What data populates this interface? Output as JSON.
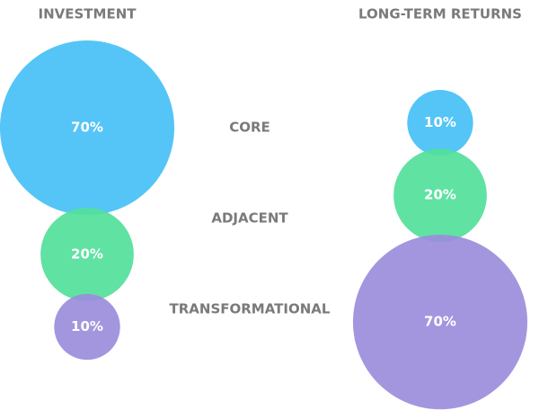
{
  "chart_data": {
    "type": "bubble",
    "categories": [
      "CORE",
      "ADJACENT",
      "TRANSFORMATIONAL"
    ],
    "colors": [
      "#45c0f5",
      "#52e09a",
      "#9b8ddc"
    ],
    "series": [
      {
        "name": "INVESTMENT",
        "values": [
          70,
          20,
          10
        ],
        "value_labels": [
          "70%",
          "20%",
          "10%"
        ]
      },
      {
        "name": "LONG-TERM RETURNS",
        "values": [
          10,
          20,
          70
        ],
        "value_labels": [
          "10%",
          "20%",
          "70%"
        ]
      }
    ]
  }
}
